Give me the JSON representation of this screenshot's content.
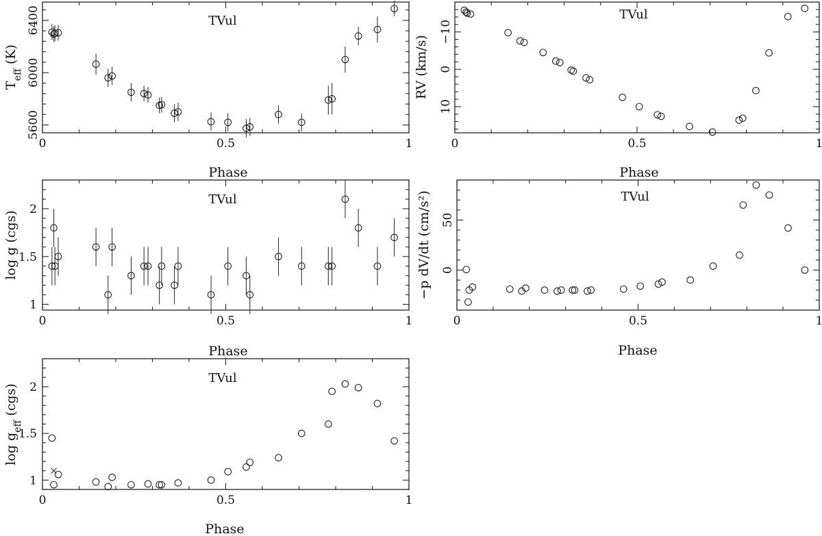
{
  "chart_data": [
    {
      "id": "teff",
      "type": "scatter",
      "title": "TVul",
      "xlabel": "Phase",
      "ylabel": "T_eff (K)",
      "ylabel_main": "T",
      "ylabel_sub": "eff",
      "ylabel_rest": " (K)",
      "xlim": [
        0,
        1
      ],
      "ylim": [
        5540,
        6540
      ],
      "y_inverted": false,
      "xticks": [
        0,
        0.5,
        1
      ],
      "xtick_labels": [
        "0",
        "0.5",
        "1"
      ],
      "yticks": [
        5600,
        6000,
        6400
      ],
      "ytick_labels": [
        "5600",
        "6000",
        "6400"
      ],
      "y_label_rotated_ticks": true,
      "series": [
        {
          "marker": "circle",
          "x": [
            0.026,
            0.031,
            0.034,
            0.043,
            0.146,
            0.179,
            0.19,
            0.242,
            0.277,
            0.288,
            0.319,
            0.325,
            0.36,
            0.37,
            0.46,
            0.506,
            0.556,
            0.566,
            0.644,
            0.707,
            0.78,
            0.79,
            0.826,
            0.862,
            0.914,
            0.96
          ],
          "y": [
            6310,
            6295,
            6300,
            6305,
            6065,
            5960,
            5975,
            5850,
            5840,
            5830,
            5750,
            5755,
            5690,
            5700,
            5625,
            5620,
            5575,
            5585,
            5680,
            5620,
            5790,
            5800,
            6100,
            6280,
            6330,
            6490
          ],
          "yerr": [
            60,
            60,
            60,
            60,
            80,
            70,
            70,
            70,
            60,
            60,
            60,
            60,
            70,
            70,
            70,
            70,
            70,
            70,
            70,
            70,
            110,
            120,
            100,
            70,
            100,
            60
          ]
        }
      ]
    },
    {
      "id": "rv",
      "type": "scatter",
      "title": "TVul",
      "xlabel": "Phase",
      "ylabel": "RV (km/s)",
      "xlim": [
        0,
        1
      ],
      "ylim": [
        -18,
        17
      ],
      "y_inverted": true,
      "xticks": [
        0,
        0.5,
        1
      ],
      "xtick_labels": [
        "0",
        "0.5",
        "1"
      ],
      "yticks": [
        -10,
        0,
        10
      ],
      "ytick_labels": [
        "−10",
        "0",
        "10"
      ],
      "y_label_rotated_ticks": true,
      "series": [
        {
          "marker": "circle",
          "x": [
            0.026,
            0.031,
            0.034,
            0.043,
            0.146,
            0.179,
            0.19,
            0.242,
            0.277,
            0.288,
            0.319,
            0.325,
            0.36,
            0.37,
            0.46,
            0.506,
            0.556,
            0.566,
            0.644,
            0.707,
            0.78,
            0.79,
            0.826,
            0.862,
            0.914,
            0.96
          ],
          "y": [
            -15.8,
            -15.3,
            -15.0,
            -14.8,
            -9.8,
            -7.6,
            -7.2,
            -4.5,
            -2.2,
            -1.8,
            0.2,
            0.5,
            2.3,
            2.8,
            7.5,
            10.0,
            12.2,
            12.6,
            15.3,
            16.8,
            13.6,
            13.1,
            5.7,
            -4.4,
            -14.1,
            -16.3
          ]
        }
      ]
    },
    {
      "id": "logg",
      "type": "scatter",
      "title": "TVul",
      "xlabel": "Phase",
      "ylabel": "log g (cgs)",
      "xlim": [
        0,
        1
      ],
      "ylim": [
        0.94,
        2.3
      ],
      "y_inverted": false,
      "xticks": [
        0,
        0.5,
        1
      ],
      "xtick_labels": [
        "0",
        "0.5",
        "1"
      ],
      "yticks": [
        1,
        1.5,
        2
      ],
      "ytick_labels": [
        "1",
        "1.5",
        "2"
      ],
      "y_label_rotated_ticks": false,
      "series": [
        {
          "marker": "circle",
          "x": [
            0.026,
            0.031,
            0.034,
            0.043,
            0.146,
            0.179,
            0.19,
            0.242,
            0.277,
            0.288,
            0.319,
            0.325,
            0.36,
            0.37,
            0.46,
            0.506,
            0.556,
            0.566,
            0.644,
            0.707,
            0.78,
            0.79,
            0.826,
            0.862,
            0.914,
            0.96
          ],
          "y": [
            1.4,
            1.8,
            1.4,
            1.5,
            1.6,
            1.1,
            1.6,
            1.3,
            1.4,
            1.4,
            1.2,
            1.4,
            1.2,
            1.4,
            1.1,
            1.4,
            1.3,
            1.1,
            1.5,
            1.4,
            1.4,
            1.4,
            2.1,
            1.8,
            1.4,
            1.7
          ],
          "yerr": [
            0.2,
            0.2,
            0.2,
            0.2,
            0.2,
            0.2,
            0.2,
            0.2,
            0.2,
            0.2,
            0.2,
            0.2,
            0.2,
            0.2,
            0.2,
            0.2,
            0.2,
            0.2,
            0.2,
            0.2,
            0.2,
            0.2,
            0.2,
            0.2,
            0.2,
            0.2
          ]
        }
      ]
    },
    {
      "id": "pdvdt",
      "type": "scatter",
      "title": "TVul",
      "xlabel": "Phase",
      "ylabel": "−p dV/dt (cm/s²)",
      "xlim": [
        0,
        1
      ],
      "ylim": [
        -40,
        90
      ],
      "y_inverted": false,
      "xticks": [
        0,
        0.5,
        1
      ],
      "xtick_labels": [
        "0",
        "0.5",
        "1"
      ],
      "yticks": [
        0,
        50
      ],
      "ytick_labels": [
        "0",
        "50"
      ],
      "y_label_rotated_ticks": true,
      "series": [
        {
          "marker": "circle",
          "x": [
            0.026,
            0.031,
            0.034,
            0.043,
            0.146,
            0.179,
            0.19,
            0.242,
            0.277,
            0.288,
            0.319,
            0.325,
            0.36,
            0.37,
            0.46,
            0.506,
            0.556,
            0.566,
            0.644,
            0.707,
            0.78,
            0.79,
            0.826,
            0.862,
            0.914,
            0.96
          ],
          "y": [
            0.5,
            -32,
            -20,
            -17,
            -19,
            -21,
            -18,
            -20,
            -21,
            -20,
            -20,
            -20,
            -21,
            -20,
            -19,
            -16,
            -14,
            -12,
            -10,
            4,
            15,
            65,
            85,
            75,
            42,
            0
          ]
        }
      ]
    },
    {
      "id": "loggeff",
      "type": "scatter",
      "title": "TVul",
      "xlabel": "Phase",
      "ylabel": "log g_eff (cgs)",
      "ylabel_main": "log g",
      "ylabel_sub": "eff",
      "ylabel_rest": " (cgs)",
      "xlim": [
        0,
        1
      ],
      "ylim": [
        0.9,
        2.3
      ],
      "y_inverted": false,
      "xticks": [
        0,
        0.5,
        1
      ],
      "xtick_labels": [
        "0",
        "0.5",
        "1"
      ],
      "yticks": [
        1,
        1.5,
        2
      ],
      "ytick_labels": [
        "1",
        "1.5",
        "2"
      ],
      "y_label_rotated_ticks": false,
      "series": [
        {
          "marker": "circle",
          "x": [
            0.026,
            0.031,
            0.043,
            0.146,
            0.179,
            0.19,
            0.242,
            0.288,
            0.319,
            0.325,
            0.37,
            0.46,
            0.506,
            0.556,
            0.566,
            0.644,
            0.707,
            0.78,
            0.79,
            0.826,
            0.862,
            0.914,
            0.96
          ],
          "y": [
            1.45,
            0.95,
            1.06,
            0.98,
            0.93,
            1.03,
            0.95,
            0.96,
            0.95,
            0.95,
            0.97,
            1.0,
            1.09,
            1.14,
            1.19,
            1.24,
            1.5,
            1.6,
            1.95,
            2.03,
            1.99,
            1.82,
            1.42
          ]
        },
        {
          "marker": "cross",
          "x": [
            0.031
          ],
          "y": [
            1.1
          ]
        }
      ]
    }
  ]
}
